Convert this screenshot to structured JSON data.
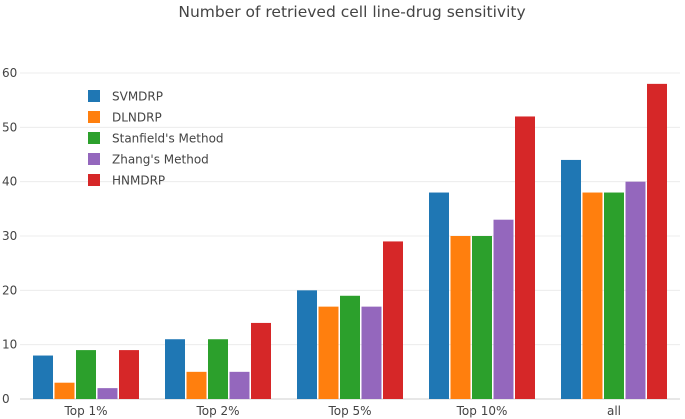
{
  "chart_data": {
    "type": "bar",
    "title": "Number of retrieved cell line-drug sensitivity",
    "xlabel": "",
    "ylabel": "",
    "ylim": [
      0,
      60
    ],
    "yticks": [
      0,
      10,
      20,
      30,
      40,
      50,
      60
    ],
    "grid": true,
    "legend_position": "top-left",
    "categories": [
      "Top 1%",
      "Top 2%",
      "Top 5%",
      "Top 10%",
      "all"
    ],
    "series": [
      {
        "name": "SVMDRP",
        "color": "#1f77b4",
        "values": [
          8,
          11,
          20,
          38,
          44
        ]
      },
      {
        "name": "DLNDRP",
        "color": "#ff7f0e",
        "values": [
          3,
          5,
          17,
          30,
          38
        ]
      },
      {
        "name": "Stanfield's Method",
        "color": "#2ca02c",
        "values": [
          9,
          11,
          19,
          30,
          38
        ]
      },
      {
        "name": "Zhang's Method",
        "color": "#9467bd",
        "values": [
          2,
          5,
          17,
          33,
          40
        ]
      },
      {
        "name": "HNMDRP",
        "color": "#d62728",
        "values": [
          9,
          14,
          29,
          52,
          58
        ]
      }
    ]
  }
}
